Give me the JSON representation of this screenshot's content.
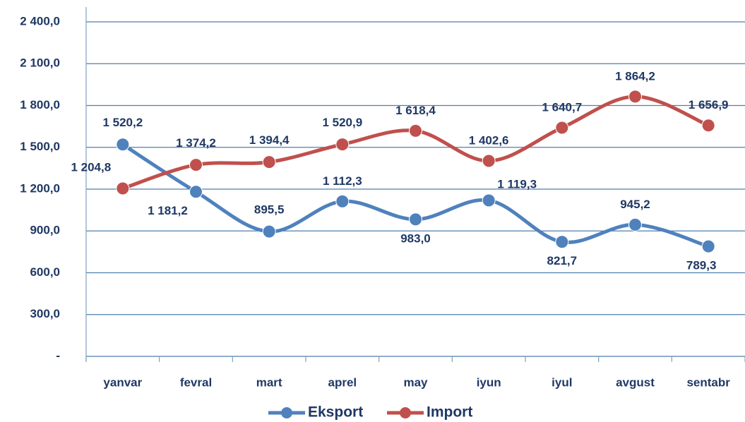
{
  "chart_data": {
    "type": "line",
    "categories": [
      "yanvar",
      "fevral",
      "mart",
      "aprel",
      "may",
      "iyun",
      "iyul",
      "avgust",
      "sentabr"
    ],
    "series": [
      {
        "name": "Eksport",
        "color": "#4f81bd",
        "values": [
          1520.2,
          1181.2,
          895.5,
          1112.3,
          983.0,
          1119.3,
          821.7,
          945.2,
          789.3
        ],
        "value_labels": [
          "1 520,2",
          "1 181,2",
          "895,5",
          "1 112,3",
          "983,0",
          "1 119,3",
          "821,7",
          "945,2",
          "789,3"
        ]
      },
      {
        "name": "Import",
        "color": "#c0504d",
        "values": [
          1204.8,
          1374.2,
          1394.4,
          1520.9,
          1618.4,
          1402.6,
          1640.7,
          1864.2,
          1656.9
        ],
        "value_labels": [
          "1 204,8",
          "1 374,2",
          "1 394,4",
          "1 520,9",
          "1 618,4",
          "1 402,6",
          "1 640,7",
          "1 864,2",
          "1 656,9"
        ]
      }
    ],
    "ylim": [
      0,
      2400
    ],
    "yticks": [
      {
        "value": 0,
        "label": "-"
      },
      {
        "value": 300,
        "label": "300,0"
      },
      {
        "value": 600,
        "label": "600,0"
      },
      {
        "value": 900,
        "label": "900,0"
      },
      {
        "value": 1200,
        "label": "1 200,0"
      },
      {
        "value": 1500,
        "label": "1 500,0"
      },
      {
        "value": 1800,
        "label": "1 800,0"
      },
      {
        "value": 2100,
        "label": "2 100,0"
      },
      {
        "value": 2400,
        "label": "2 400,0"
      }
    ],
    "grid": true,
    "legend": "bottom"
  }
}
